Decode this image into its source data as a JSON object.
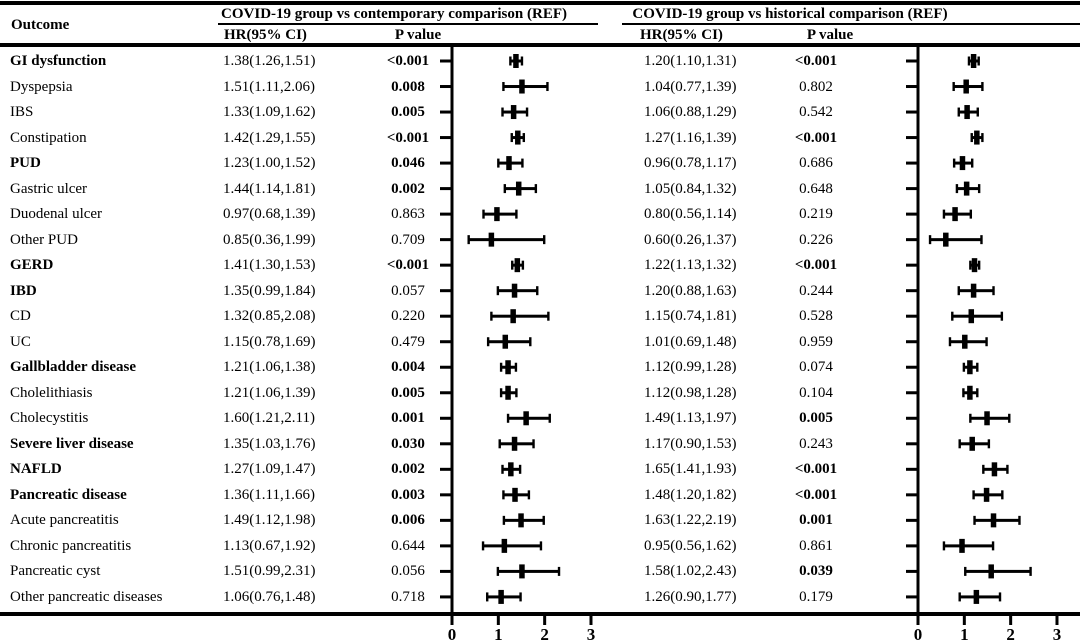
{
  "chart_data": {
    "type": "scatter",
    "subtype": "forest-plot",
    "columns": {
      "outcome": "Outcome",
      "hr": "HR(95% CI)",
      "p": "P value"
    },
    "panels": [
      {
        "key": "contemporary",
        "title": "COVID-19 group vs contemporary comparison (REF)"
      },
      {
        "key": "historical",
        "title": "COVID-19 group vs historical comparison (REF)"
      }
    ],
    "x_axis": {
      "min": 0,
      "max": 3,
      "tick_labels": [
        "0",
        "1",
        "2",
        "3"
      ],
      "grid": false
    },
    "rows": [
      {
        "outcome": "GI dysfunction",
        "bold": true,
        "contemporary": {
          "hr_text": "1.38(1.26,1.51)",
          "hr": 1.38,
          "lo": 1.26,
          "hi": 1.51,
          "p": "<0.001",
          "sig": true
        },
        "historical": {
          "hr_text": "1.20(1.10,1.31)",
          "hr": 1.2,
          "lo": 1.1,
          "hi": 1.31,
          "p": "<0.001",
          "sig": true
        }
      },
      {
        "outcome": "Dyspepsia",
        "bold": false,
        "contemporary": {
          "hr_text": "1.51(1.11,2.06)",
          "hr": 1.51,
          "lo": 1.11,
          "hi": 2.06,
          "p": "0.008",
          "sig": true
        },
        "historical": {
          "hr_text": "1.04(0.77,1.39)",
          "hr": 1.04,
          "lo": 0.77,
          "hi": 1.39,
          "p": "0.802",
          "sig": false
        }
      },
      {
        "outcome": "IBS",
        "bold": false,
        "contemporary": {
          "hr_text": "1.33(1.09,1.62)",
          "hr": 1.33,
          "lo": 1.09,
          "hi": 1.62,
          "p": "0.005",
          "sig": true
        },
        "historical": {
          "hr_text": "1.06(0.88,1.29)",
          "hr": 1.06,
          "lo": 0.88,
          "hi": 1.29,
          "p": "0.542",
          "sig": false
        }
      },
      {
        "outcome": "Constipation",
        "bold": false,
        "contemporary": {
          "hr_text": "1.42(1.29,1.55)",
          "hr": 1.42,
          "lo": 1.29,
          "hi": 1.55,
          "p": "<0.001",
          "sig": true
        },
        "historical": {
          "hr_text": "1.27(1.16,1.39)",
          "hr": 1.27,
          "lo": 1.16,
          "hi": 1.39,
          "p": "<0.001",
          "sig": true
        }
      },
      {
        "outcome": "PUD",
        "bold": true,
        "contemporary": {
          "hr_text": "1.23(1.00,1.52)",
          "hr": 1.23,
          "lo": 1.0,
          "hi": 1.52,
          "p": "0.046",
          "sig": true
        },
        "historical": {
          "hr_text": "0.96(0.78,1.17)",
          "hr": 0.96,
          "lo": 0.78,
          "hi": 1.17,
          "p": "0.686",
          "sig": false
        }
      },
      {
        "outcome": "Gastric ulcer",
        "bold": false,
        "contemporary": {
          "hr_text": "1.44(1.14,1.81)",
          "hr": 1.44,
          "lo": 1.14,
          "hi": 1.81,
          "p": "0.002",
          "sig": true
        },
        "historical": {
          "hr_text": "1.05(0.84,1.32)",
          "hr": 1.05,
          "lo": 0.84,
          "hi": 1.32,
          "p": "0.648",
          "sig": false
        }
      },
      {
        "outcome": "Duodenal ulcer",
        "bold": false,
        "contemporary": {
          "hr_text": "0.97(0.68,1.39)",
          "hr": 0.97,
          "lo": 0.68,
          "hi": 1.39,
          "p": "0.863",
          "sig": false
        },
        "historical": {
          "hr_text": "0.80(0.56,1.14)",
          "hr": 0.8,
          "lo": 0.56,
          "hi": 1.14,
          "p": "0.219",
          "sig": false
        }
      },
      {
        "outcome": "Other PUD",
        "bold": false,
        "contemporary": {
          "hr_text": "0.85(0.36,1.99)",
          "hr": 0.85,
          "lo": 0.36,
          "hi": 1.99,
          "p": "0.709",
          "sig": false
        },
        "historical": {
          "hr_text": "0.60(0.26,1.37)",
          "hr": 0.6,
          "lo": 0.26,
          "hi": 1.37,
          "p": "0.226",
          "sig": false
        }
      },
      {
        "outcome": "GERD",
        "bold": true,
        "contemporary": {
          "hr_text": "1.41(1.30,1.53)",
          "hr": 1.41,
          "lo": 1.3,
          "hi": 1.53,
          "p": "<0.001",
          "sig": true
        },
        "historical": {
          "hr_text": "1.22(1.13,1.32)",
          "hr": 1.22,
          "lo": 1.13,
          "hi": 1.32,
          "p": "<0.001",
          "sig": true
        }
      },
      {
        "outcome": "IBD",
        "bold": true,
        "contemporary": {
          "hr_text": "1.35(0.99,1.84)",
          "hr": 1.35,
          "lo": 0.99,
          "hi": 1.84,
          "p": "0.057",
          "sig": false
        },
        "historical": {
          "hr_text": "1.20(0.88,1.63)",
          "hr": 1.2,
          "lo": 0.88,
          "hi": 1.63,
          "p": "0.244",
          "sig": false
        }
      },
      {
        "outcome": "CD",
        "bold": false,
        "contemporary": {
          "hr_text": "1.32(0.85,2.08)",
          "hr": 1.32,
          "lo": 0.85,
          "hi": 2.08,
          "p": "0.220",
          "sig": false
        },
        "historical": {
          "hr_text": "1.15(0.74,1.81)",
          "hr": 1.15,
          "lo": 0.74,
          "hi": 1.81,
          "p": "0.528",
          "sig": false
        }
      },
      {
        "outcome": "UC",
        "bold": false,
        "contemporary": {
          "hr_text": "1.15(0.78,1.69)",
          "hr": 1.15,
          "lo": 0.78,
          "hi": 1.69,
          "p": "0.479",
          "sig": false
        },
        "historical": {
          "hr_text": "1.01(0.69,1.48)",
          "hr": 1.01,
          "lo": 0.69,
          "hi": 1.48,
          "p": "0.959",
          "sig": false
        }
      },
      {
        "outcome": "Gallbladder disease",
        "bold": true,
        "contemporary": {
          "hr_text": "1.21(1.06,1.38)",
          "hr": 1.21,
          "lo": 1.06,
          "hi": 1.38,
          "p": "0.004",
          "sig": true
        },
        "historical": {
          "hr_text": "1.12(0.99,1.28)",
          "hr": 1.12,
          "lo": 0.99,
          "hi": 1.28,
          "p": "0.074",
          "sig": false
        }
      },
      {
        "outcome": "Cholelithiasis",
        "bold": false,
        "contemporary": {
          "hr_text": "1.21(1.06,1.39)",
          "hr": 1.21,
          "lo": 1.06,
          "hi": 1.39,
          "p": "0.005",
          "sig": true
        },
        "historical": {
          "hr_text": "1.12(0.98,1.28)",
          "hr": 1.12,
          "lo": 0.98,
          "hi": 1.28,
          "p": "0.104",
          "sig": false
        }
      },
      {
        "outcome": "Cholecystitis",
        "bold": false,
        "contemporary": {
          "hr_text": "1.60(1.21,2.11)",
          "hr": 1.6,
          "lo": 1.21,
          "hi": 2.11,
          "p": "0.001",
          "sig": true
        },
        "historical": {
          "hr_text": "1.49(1.13,1.97)",
          "hr": 1.49,
          "lo": 1.13,
          "hi": 1.97,
          "p": "0.005",
          "sig": true
        }
      },
      {
        "outcome": "Severe liver disease",
        "bold": true,
        "contemporary": {
          "hr_text": "1.35(1.03,1.76)",
          "hr": 1.35,
          "lo": 1.03,
          "hi": 1.76,
          "p": "0.030",
          "sig": true
        },
        "historical": {
          "hr_text": "1.17(0.90,1.53)",
          "hr": 1.17,
          "lo": 0.9,
          "hi": 1.53,
          "p": "0.243",
          "sig": false
        }
      },
      {
        "outcome": "NAFLD",
        "bold": true,
        "contemporary": {
          "hr_text": "1.27(1.09,1.47)",
          "hr": 1.27,
          "lo": 1.09,
          "hi": 1.47,
          "p": "0.002",
          "sig": true
        },
        "historical": {
          "hr_text": "1.65(1.41,1.93)",
          "hr": 1.65,
          "lo": 1.41,
          "hi": 1.93,
          "p": "<0.001",
          "sig": true
        }
      },
      {
        "outcome": "Pancreatic disease",
        "bold": true,
        "contemporary": {
          "hr_text": "1.36(1.11,1.66)",
          "hr": 1.36,
          "lo": 1.11,
          "hi": 1.66,
          "p": "0.003",
          "sig": true
        },
        "historical": {
          "hr_text": "1.48(1.20,1.82)",
          "hr": 1.48,
          "lo": 1.2,
          "hi": 1.82,
          "p": "<0.001",
          "sig": true
        }
      },
      {
        "outcome": "Acute pancreatitis",
        "bold": false,
        "contemporary": {
          "hr_text": "1.49(1.12,1.98)",
          "hr": 1.49,
          "lo": 1.12,
          "hi": 1.98,
          "p": "0.006",
          "sig": true
        },
        "historical": {
          "hr_text": "1.63(1.22,2.19)",
          "hr": 1.63,
          "lo": 1.22,
          "hi": 2.19,
          "p": "0.001",
          "sig": true
        }
      },
      {
        "outcome": "Chronic pancreatitis",
        "bold": false,
        "contemporary": {
          "hr_text": "1.13(0.67,1.92)",
          "hr": 1.13,
          "lo": 0.67,
          "hi": 1.92,
          "p": "0.644",
          "sig": false
        },
        "historical": {
          "hr_text": "0.95(0.56,1.62)",
          "hr": 0.95,
          "lo": 0.56,
          "hi": 1.62,
          "p": "0.861",
          "sig": false
        }
      },
      {
        "outcome": "Pancreatic cyst",
        "bold": false,
        "contemporary": {
          "hr_text": "1.51(0.99,2.31)",
          "hr": 1.51,
          "lo": 0.99,
          "hi": 2.31,
          "p": "0.056",
          "sig": false
        },
        "historical": {
          "hr_text": "1.58(1.02,2.43)",
          "hr": 1.58,
          "lo": 1.02,
          "hi": 2.43,
          "p": "0.039",
          "sig": true
        }
      },
      {
        "outcome": "Other pancreatic diseases",
        "bold": false,
        "contemporary": {
          "hr_text": "1.06(0.76,1.48)",
          "hr": 1.06,
          "lo": 0.76,
          "hi": 1.48,
          "p": "0.718",
          "sig": false
        },
        "historical": {
          "hr_text": "1.26(0.90,1.77)",
          "hr": 1.26,
          "lo": 0.9,
          "hi": 1.77,
          "p": "0.179",
          "sig": false
        }
      }
    ]
  }
}
